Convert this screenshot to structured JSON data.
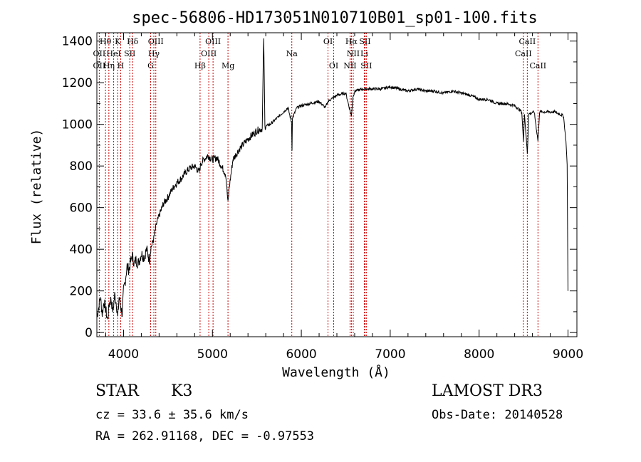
{
  "chart_data": {
    "type": "line",
    "title": "spec-56806-HD173051N010710B01_sp01-100.fits",
    "xlabel": "Wavelength (Å)",
    "ylabel": "Flux (relative)",
    "xlim": [
      3700,
      9100
    ],
    "ylim": [
      -20,
      1440
    ],
    "x_ticks": [
      4000,
      5000,
      6000,
      7000,
      8000,
      9000
    ],
    "y_ticks": [
      0,
      200,
      400,
      600,
      800,
      1000,
      1200,
      1400
    ],
    "grid": false,
    "line_color": "#000000",
    "marker_color": "#cc0000",
    "spectrum_points": [
      [
        3700,
        80
      ],
      [
        3720,
        120
      ],
      [
        3740,
        170
      ],
      [
        3760,
        90
      ],
      [
        3780,
        150
      ],
      [
        3800,
        110
      ],
      [
        3820,
        60
      ],
      [
        3840,
        140
      ],
      [
        3860,
        160
      ],
      [
        3880,
        100
      ],
      [
        3900,
        180
      ],
      [
        3920,
        140
      ],
      [
        3935,
        70
      ],
      [
        3950,
        170
      ],
      [
        3970,
        120
      ],
      [
        3985,
        90
      ],
      [
        4000,
        200
      ],
      [
        4020,
        250
      ],
      [
        4040,
        320
      ],
      [
        4060,
        300
      ],
      [
        4080,
        340
      ],
      [
        4100,
        370
      ],
      [
        4120,
        330
      ],
      [
        4140,
        350
      ],
      [
        4160,
        330
      ],
      [
        4180,
        350
      ],
      [
        4200,
        380
      ],
      [
        4230,
        360
      ],
      [
        4260,
        400
      ],
      [
        4290,
        350
      ],
      [
        4310,
        410
      ],
      [
        4340,
        450
      ],
      [
        4370,
        520
      ],
      [
        4400,
        560
      ],
      [
        4450,
        620
      ],
      [
        4500,
        650
      ],
      [
        4550,
        690
      ],
      [
        4600,
        720
      ],
      [
        4650,
        740
      ],
      [
        4700,
        770
      ],
      [
        4750,
        790
      ],
      [
        4800,
        800
      ],
      [
        4850,
        770
      ],
      [
        4870,
        810
      ],
      [
        4900,
        830
      ],
      [
        4950,
        850
      ],
      [
        5000,
        830
      ],
      [
        5050,
        840
      ],
      [
        5100,
        800
      ],
      [
        5150,
        760
      ],
      [
        5175,
        620
      ],
      [
        5190,
        700
      ],
      [
        5230,
        830
      ],
      [
        5300,
        880
      ],
      [
        5400,
        930
      ],
      [
        5500,
        970
      ],
      [
        5560,
        980
      ],
      [
        5577,
        1420
      ],
      [
        5590,
        990
      ],
      [
        5650,
        1000
      ],
      [
        5700,
        1020
      ],
      [
        5750,
        1040
      ],
      [
        5800,
        1060
      ],
      [
        5850,
        1080
      ],
      [
        5890,
        1010
      ],
      [
        5895,
        880
      ],
      [
        5900,
        1030
      ],
      [
        5950,
        1080
      ],
      [
        6000,
        1090
      ],
      [
        6100,
        1100
      ],
      [
        6200,
        1110
      ],
      [
        6270,
        1080
      ],
      [
        6300,
        1110
      ],
      [
        6400,
        1140
      ],
      [
        6500,
        1150
      ],
      [
        6563,
        1040
      ],
      [
        6580,
        1130
      ],
      [
        6600,
        1160
      ],
      [
        6700,
        1170
      ],
      [
        6800,
        1170
      ],
      [
        6900,
        1170
      ],
      [
        7000,
        1180
      ],
      [
        7100,
        1170
      ],
      [
        7200,
        1160
      ],
      [
        7300,
        1170
      ],
      [
        7400,
        1160
      ],
      [
        7500,
        1160
      ],
      [
        7600,
        1150
      ],
      [
        7700,
        1160
      ],
      [
        7800,
        1150
      ],
      [
        7900,
        1140
      ],
      [
        8000,
        1120
      ],
      [
        8100,
        1120
      ],
      [
        8200,
        1100
      ],
      [
        8300,
        1100
      ],
      [
        8400,
        1090
      ],
      [
        8480,
        1060
      ],
      [
        8498,
        920
      ],
      [
        8510,
        1050
      ],
      [
        8542,
        860
      ],
      [
        8560,
        1050
      ],
      [
        8620,
        1060
      ],
      [
        8662,
        920
      ],
      [
        8680,
        1060
      ],
      [
        8750,
        1060
      ],
      [
        8850,
        1060
      ],
      [
        8950,
        1040
      ],
      [
        8980,
        900
      ],
      [
        8990,
        800
      ],
      [
        9000,
        200
      ]
    ],
    "line_markers": [
      {
        "label": "Hθ",
        "x": 3797,
        "row": 0
      },
      {
        "label": "K",
        "x": 3934,
        "row": 0
      },
      {
        "label": "Hδ",
        "x": 4102,
        "row": 0
      },
      {
        "label": "OIII",
        "x": 4363,
        "row": 0
      },
      {
        "label": "OIII",
        "x": 5007,
        "row": 0
      },
      {
        "label": "OI",
        "x": 6300,
        "row": 0
      },
      {
        "label": "Hα",
        "x": 6563,
        "row": 0
      },
      {
        "label": "SII",
        "x": 6716,
        "row": 0
      },
      {
        "label": "CaII",
        "x": 8542,
        "row": 0
      },
      {
        "label": "OII",
        "x": 3727,
        "row": 1
      },
      {
        "label": "HeI",
        "x": 3889,
        "row": 1
      },
      {
        "label": "SII",
        "x": 4070,
        "row": 1
      },
      {
        "label": "Hγ",
        "x": 4341,
        "row": 1
      },
      {
        "label": "OIII",
        "x": 4959,
        "row": 1
      },
      {
        "label": "Na",
        "x": 5893,
        "row": 1
      },
      {
        "label": "NII",
        "x": 6584,
        "row": 1
      },
      {
        "label": "Li",
        "x": 6708,
        "row": 1
      },
      {
        "label": "CaII",
        "x": 8498,
        "row": 1
      },
      {
        "label": "OII",
        "x": 3727,
        "row": 2
      },
      {
        "label": "Hη",
        "x": 3835,
        "row": 2
      },
      {
        "label": "H",
        "x": 3968,
        "row": 2
      },
      {
        "label": "G",
        "x": 4305,
        "row": 2
      },
      {
        "label": "Hβ",
        "x": 4861,
        "row": 2
      },
      {
        "label": "Mg",
        "x": 5175,
        "row": 2
      },
      {
        "label": "OI",
        "x": 6364,
        "row": 2
      },
      {
        "label": "NII",
        "x": 6548,
        "row": 2
      },
      {
        "label": "SII",
        "x": 6731,
        "row": 2
      },
      {
        "label": "CaII",
        "x": 8662,
        "row": 2
      }
    ]
  },
  "info": {
    "object_class": "STAR",
    "subclass": "K3",
    "survey": "LAMOST DR3",
    "cz_text": "cz = 33.6 ± 35.6 km/s",
    "obs_date_text": "Obs-Date: 20140528",
    "coords_text": "RA = 262.91168, DEC =  -0.97553"
  }
}
